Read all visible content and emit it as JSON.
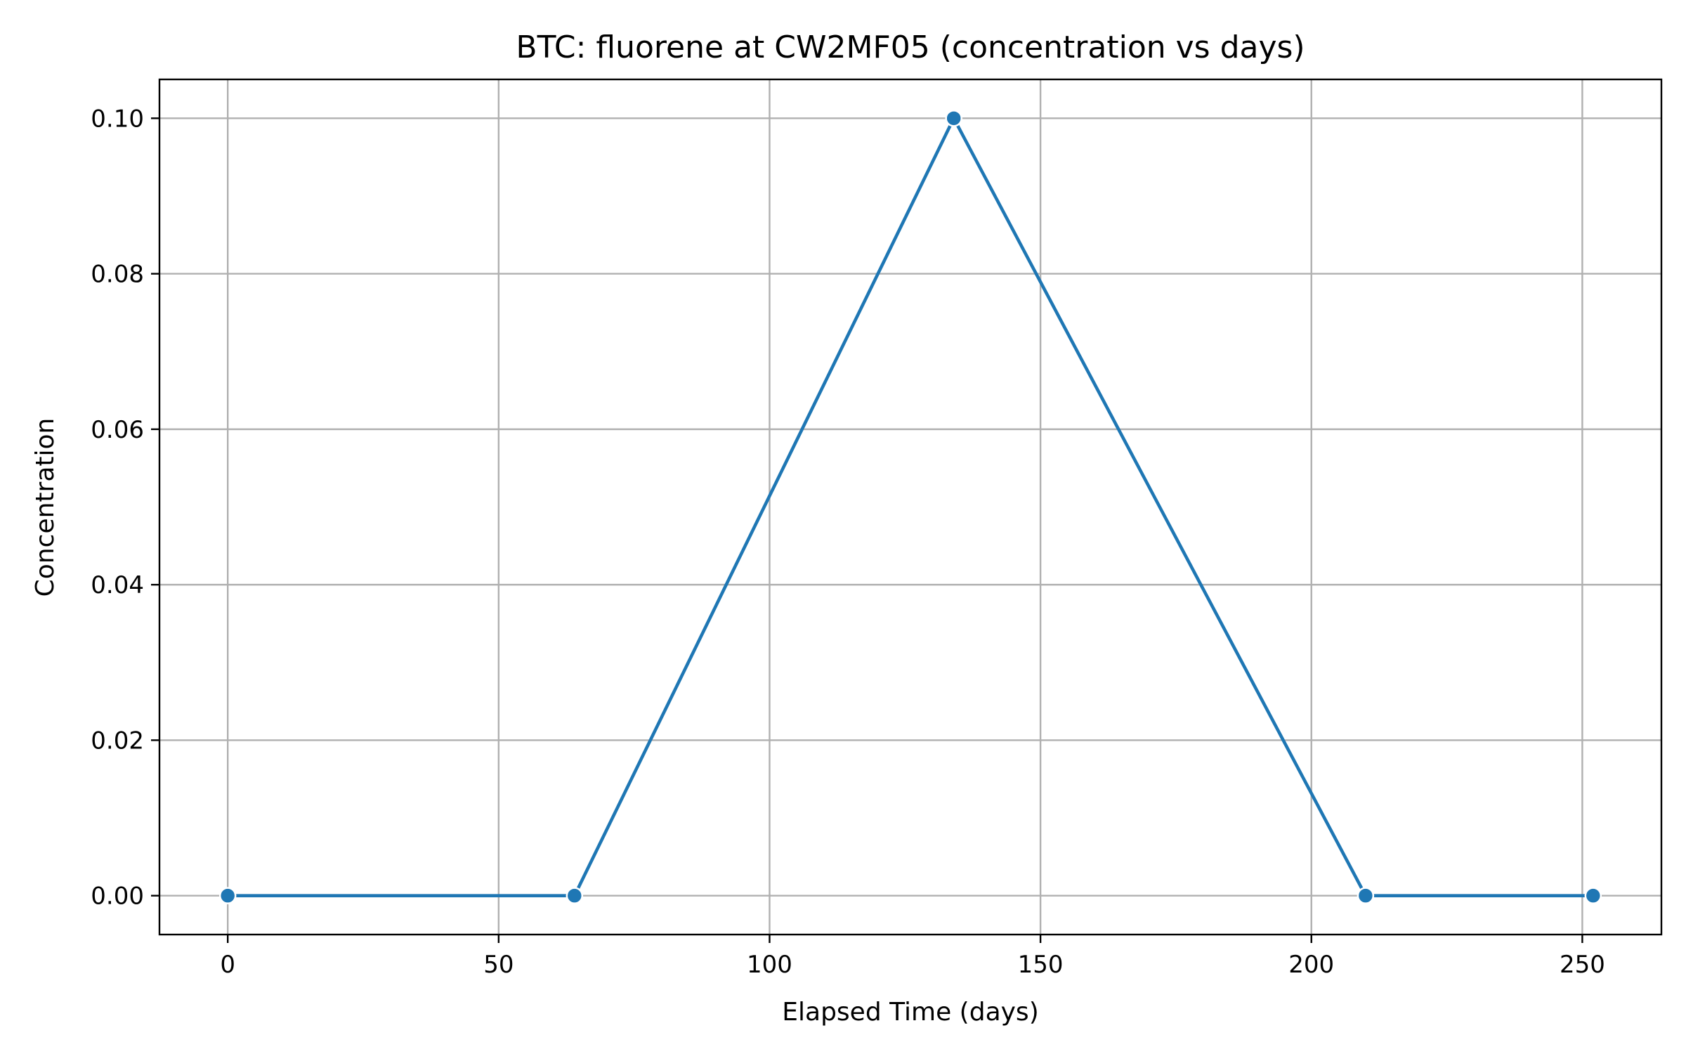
{
  "chart_data": {
    "type": "line",
    "title": "BTC: fluorene at CW2MF05 (concentration vs days)",
    "xlabel": "Elapsed Time (days)",
    "ylabel": "Concentration",
    "xlim": [
      -12.6,
      264.6
    ],
    "ylim": [
      -0.005,
      0.105
    ],
    "xticks": [
      0,
      50,
      100,
      150,
      200,
      250
    ],
    "xtick_labels": [
      "0",
      "50",
      "100",
      "150",
      "200",
      "250"
    ],
    "yticks": [
      0.0,
      0.02,
      0.04,
      0.06,
      0.08,
      0.1
    ],
    "ytick_labels": [
      "0.00",
      "0.02",
      "0.04",
      "0.06",
      "0.08",
      "0.10"
    ],
    "grid": true,
    "series": [
      {
        "color": "#1f77b4",
        "marker": "circle",
        "x": [
          0,
          64,
          134,
          210,
          252
        ],
        "y": [
          0.0,
          0.0,
          0.1,
          0.0,
          0.0
        ]
      }
    ]
  }
}
